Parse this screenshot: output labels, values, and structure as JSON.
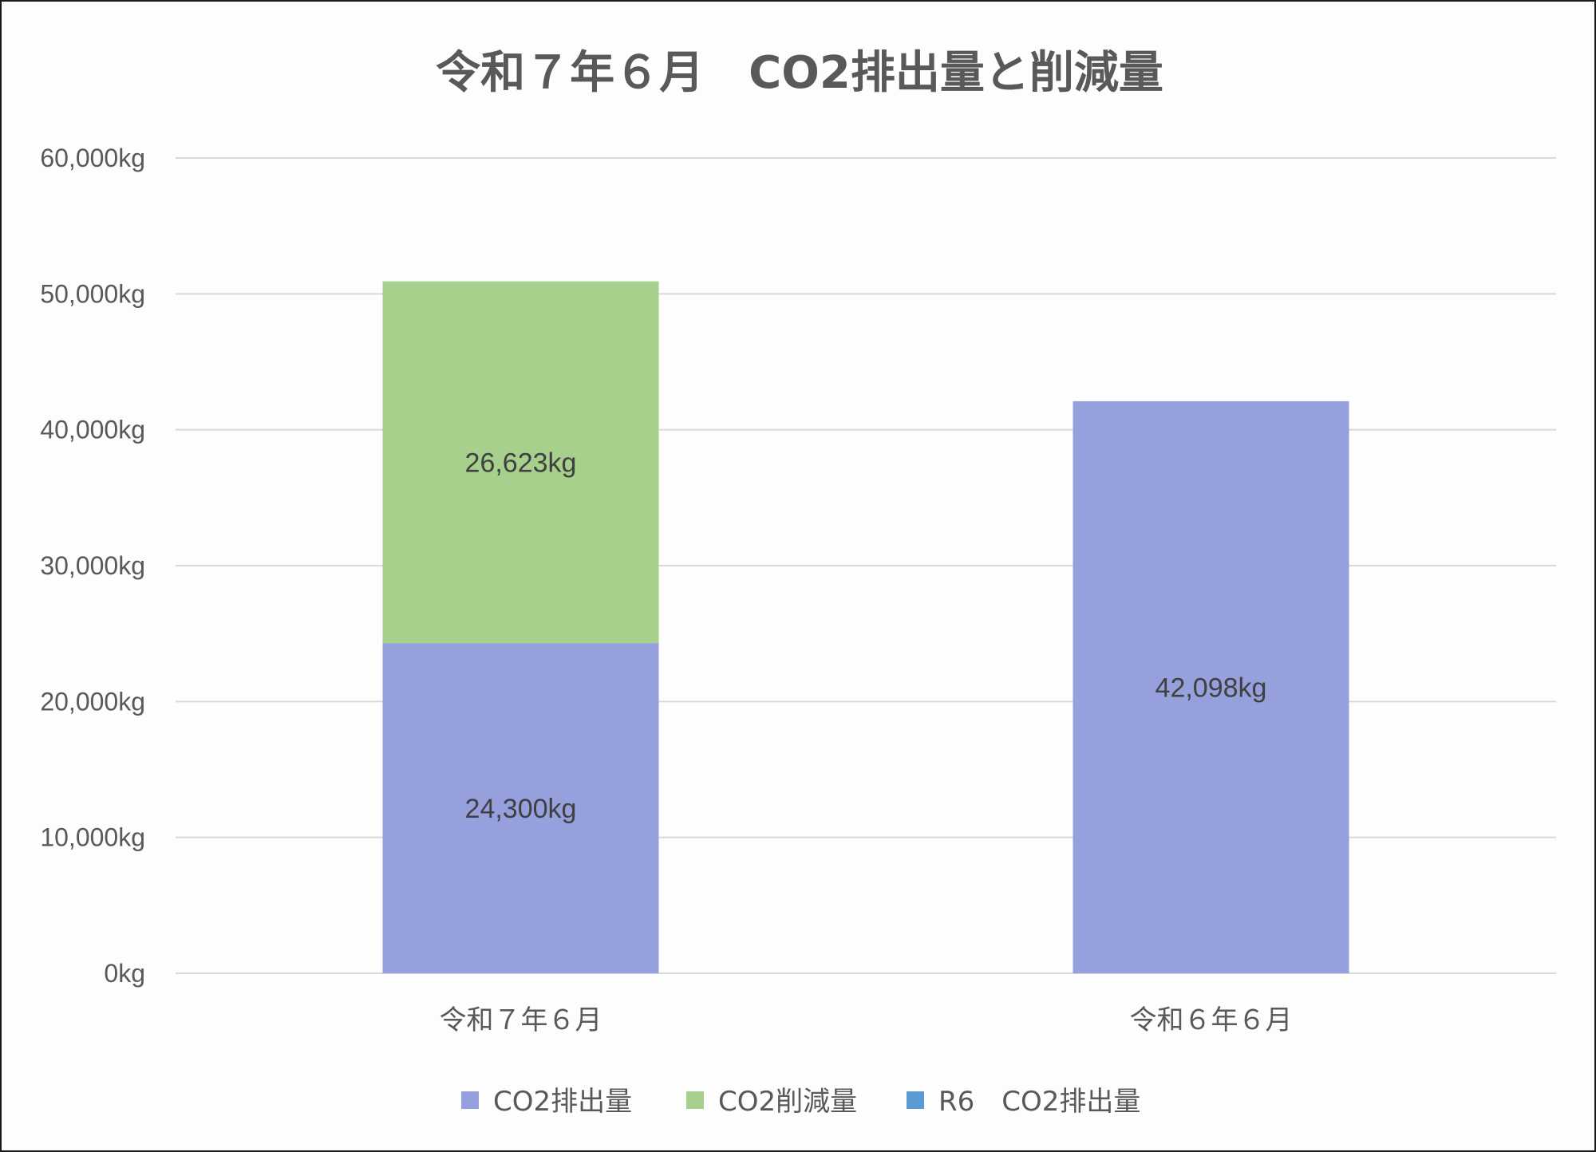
{
  "chart_data": {
    "type": "bar",
    "stacked": true,
    "title": "令和７年６月　CO2排出量と削減量",
    "categories": [
      "令和７年６月",
      "令和６年６月"
    ],
    "series": [
      {
        "name": "CO2排出量",
        "color": "#96a0dc",
        "values": [
          24300,
          null
        ]
      },
      {
        "name": "CO2削減量",
        "color": "#a8d08d",
        "values": [
          26623,
          null
        ]
      },
      {
        "name": "R6　CO2排出量",
        "color": "#5b9bd5",
        "values": [
          null,
          42098
        ]
      }
    ],
    "bar_colors_displayed": {
      "令和６年６月": "#96a0dc"
    },
    "data_labels": [
      {
        "category": "令和７年６月",
        "series": "CO2排出量",
        "text": "24,300kg"
      },
      {
        "category": "令和７年６月",
        "series": "CO2削減量",
        "text": "26,623kg"
      },
      {
        "category": "令和６年６月",
        "series": "R6　CO2排出量",
        "text": "42,098kg"
      }
    ],
    "ylim": [
      0,
      60000
    ],
    "yticks": [
      0,
      10000,
      20000,
      30000,
      40000,
      50000,
      60000
    ],
    "ytick_labels": [
      "0kg",
      "10,000kg",
      "20,000kg",
      "30,000kg",
      "40,000kg",
      "50,000kg",
      "60,000kg"
    ],
    "xlabel": "",
    "ylabel": "",
    "grid": true,
    "legend_position": "bottom"
  }
}
